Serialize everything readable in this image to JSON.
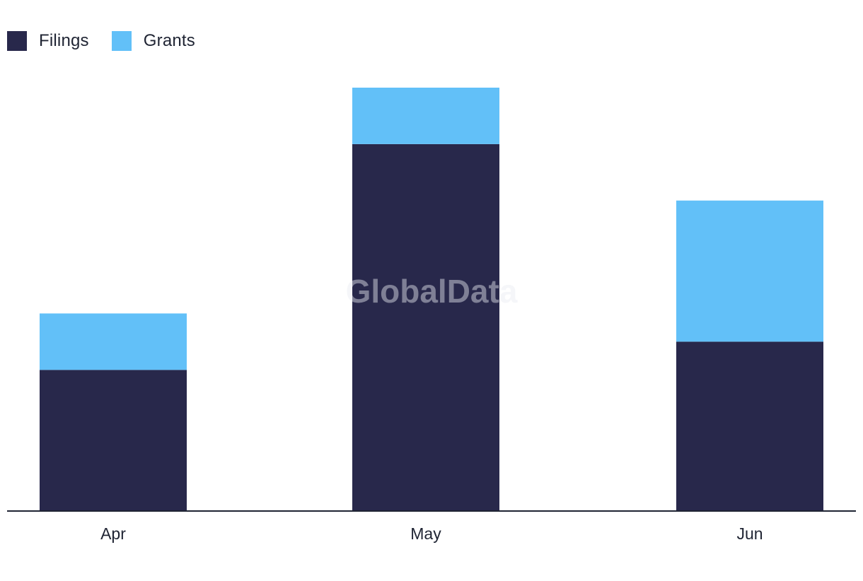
{
  "legend": {
    "items": [
      {
        "label": "Filings",
        "color": "#28284b"
      },
      {
        "label": "Grants",
        "color": "#62c0f8"
      }
    ]
  },
  "watermark": "GlobalData",
  "chart_data": {
    "type": "bar",
    "stacked": true,
    "categories": [
      "Apr",
      "May",
      "Jun"
    ],
    "series": [
      {
        "name": "Filings",
        "values": [
          5,
          13,
          6
        ],
        "color": "#28284b"
      },
      {
        "name": "Grants",
        "values": [
          2,
          2,
          5
        ],
        "color": "#62c0f8"
      }
    ],
    "ylim": [
      0,
      15
    ],
    "grid": false,
    "legend_position": "top-left",
    "title": "",
    "xlabel": "",
    "ylabel": ""
  }
}
